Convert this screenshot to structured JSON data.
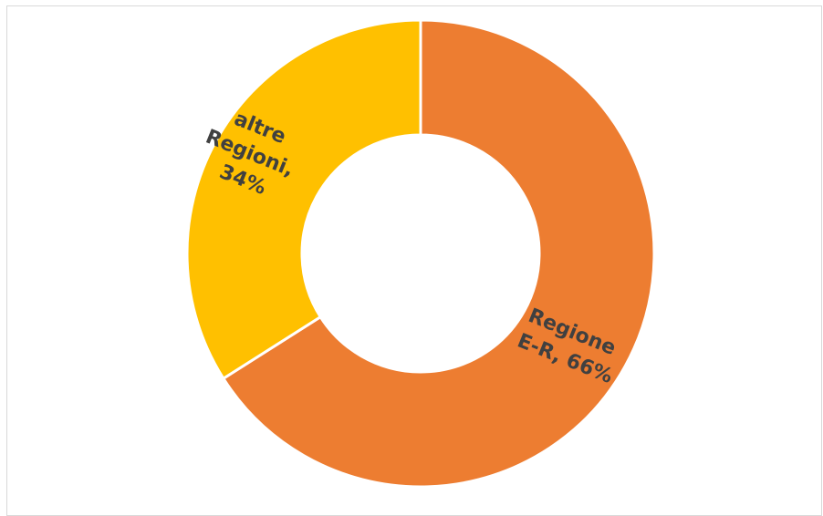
{
  "chart_data": {
    "type": "pie",
    "variant": "donut",
    "slices": [
      {
        "label_lines": [
          "Regione",
          "E-R, 66%"
        ],
        "value": 66,
        "color": "#ED7D31"
      },
      {
        "label_lines": [
          "altre",
          "Regioni,",
          "34%"
        ],
        "value": 34,
        "color": "#FFC000"
      }
    ],
    "title": "",
    "legend": "none",
    "label_color": "#404040"
  }
}
